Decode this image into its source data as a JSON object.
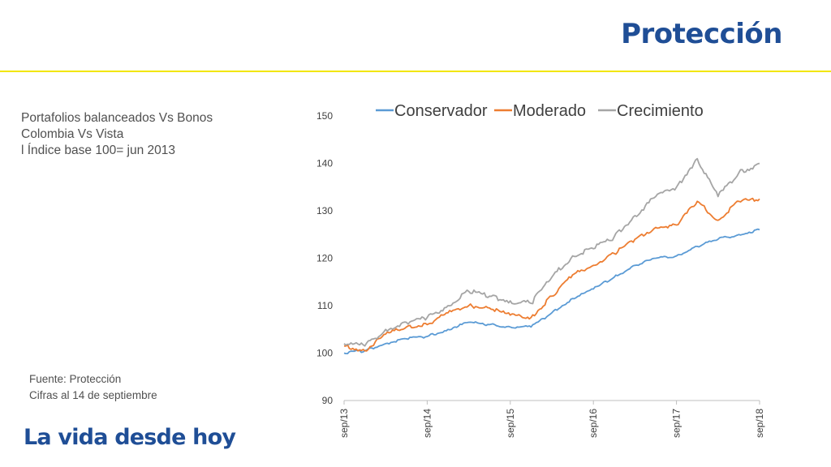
{
  "header": {
    "brand": "Protección"
  },
  "description": {
    "lines": [
      "Portafolios balanceados Vs Bonos",
      "Colombia Vs Vista",
      "l Índice base 100= jun 2013"
    ]
  },
  "source": {
    "lines": [
      "Fuente: Protección",
      "Cifras al 14 de septiembre"
    ]
  },
  "footer": {
    "tagline": "La vida desde hoy"
  },
  "colors": {
    "brand": "#1f4e96",
    "rule": "#f2e600"
  },
  "chart_data": {
    "type": "line",
    "title": "",
    "xlabel": "",
    "ylabel": "",
    "ylim": [
      90,
      150
    ],
    "yticks": [
      90,
      100,
      110,
      120,
      130,
      140,
      150
    ],
    "xticks": [
      "sep/13",
      "sep/14",
      "sep/15",
      "sep/16",
      "sep/17",
      "sep/18"
    ],
    "xlim": [
      "2013-09",
      "2018-09"
    ],
    "grid": false,
    "legend_position": "top",
    "x": [
      "2013-09",
      "2013-12",
      "2014-03",
      "2014-06",
      "2014-09",
      "2014-12",
      "2015-03",
      "2015-06",
      "2015-09",
      "2015-12",
      "2016-03",
      "2016-06",
      "2016-09",
      "2016-12",
      "2017-03",
      "2017-06",
      "2017-09",
      "2017-12",
      "2018-03",
      "2018-06",
      "2018-09"
    ],
    "series": [
      {
        "name": "Conservador",
        "color": "#5b9bd5",
        "values": [
          100,
          100.5,
          102,
          103,
          103.5,
          105,
          106.5,
          106,
          105.5,
          105.5,
          108.5,
          111.5,
          113.5,
          116,
          118.5,
          120,
          120.5,
          122.5,
          124,
          125,
          126
        ]
      },
      {
        "name": "Moderado",
        "color": "#ed7d31",
        "values": [
          101.5,
          100.5,
          104,
          105.5,
          106,
          108.5,
          110,
          109.5,
          108,
          107.5,
          112,
          116.5,
          118.5,
          121,
          124,
          126.5,
          127,
          132,
          128,
          132,
          132.5
        ]
      },
      {
        "name": "Crecimiento",
        "color": "#a5a5a5",
        "values": [
          102,
          101.5,
          105,
          106.5,
          107.5,
          110,
          113,
          112,
          111,
          110.5,
          116,
          120.5,
          122,
          124.5,
          129,
          133,
          135,
          141,
          133,
          138,
          140
        ]
      }
    ]
  }
}
